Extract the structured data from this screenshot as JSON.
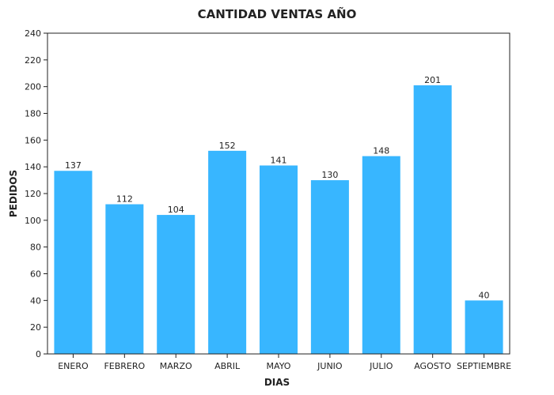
{
  "chart_data": {
    "type": "bar",
    "title": "CANTIDAD VENTAS AÑO",
    "xlabel": "DIAS",
    "ylabel": "PEDIDOS",
    "categories": [
      "ENERO",
      "FEBRERO",
      "MARZO",
      "ABRIL",
      "MAYO",
      "JUNIO",
      "JULIO",
      "AGOSTO",
      "SEPTIEMBRE"
    ],
    "values": [
      137,
      112,
      104,
      152,
      141,
      130,
      148,
      201,
      40
    ],
    "ylim": [
      0,
      240
    ],
    "yticks": [
      0,
      20,
      40,
      60,
      80,
      100,
      120,
      140,
      160,
      180,
      200,
      220,
      240
    ],
    "grid": false,
    "legend": "none",
    "bar_color": "#38b6ff"
  }
}
